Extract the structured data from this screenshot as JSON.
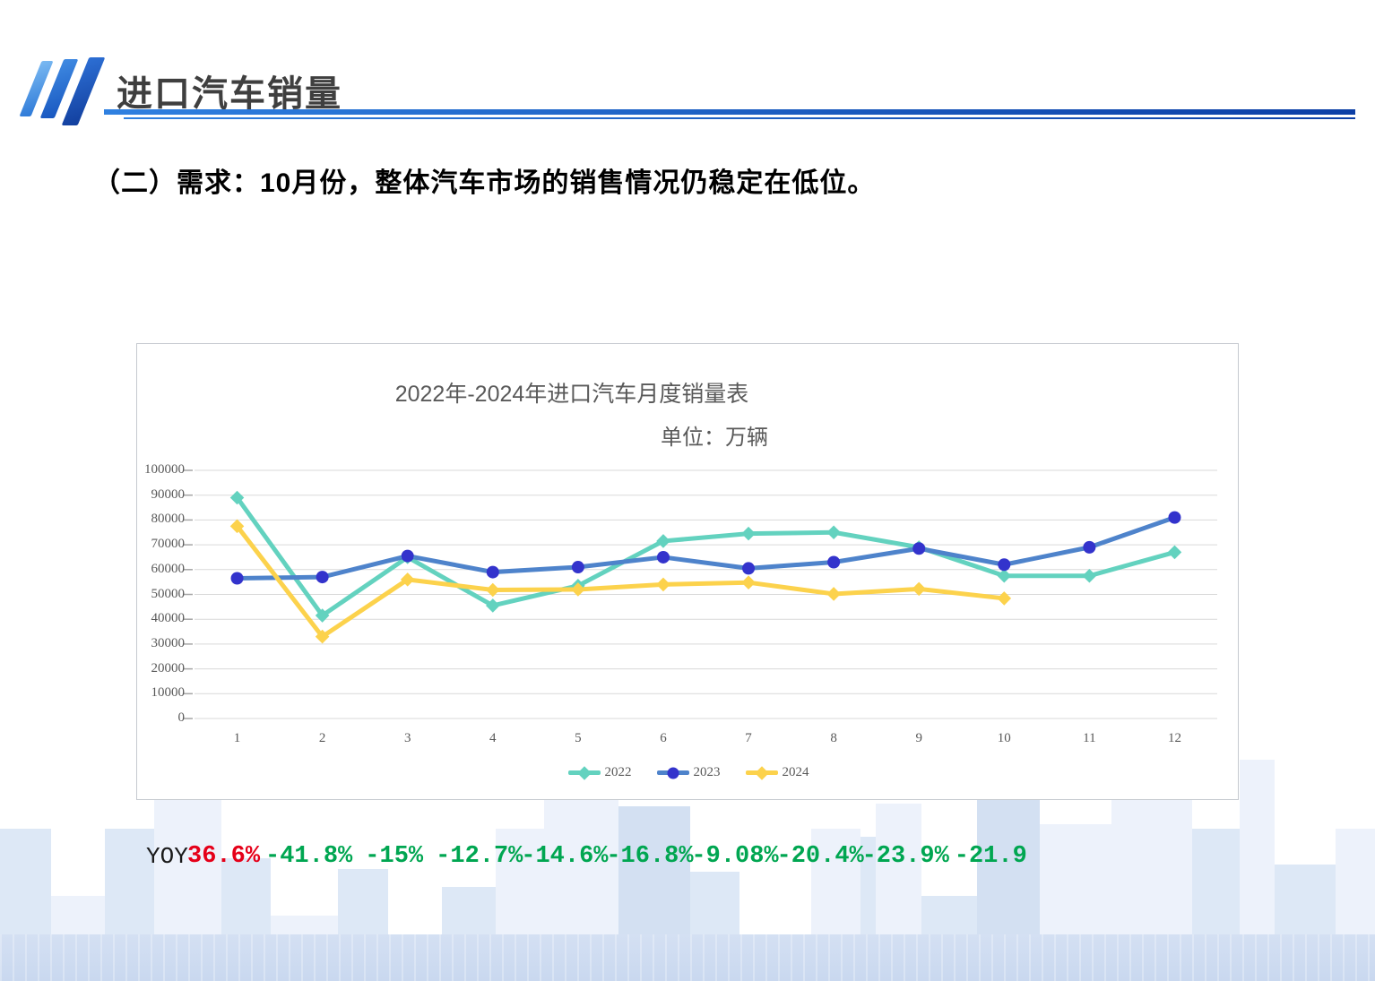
{
  "header": {
    "title": "进口汽车销量"
  },
  "section_heading": "（二）需求：10月份，整体汽车市场的销售情况仍稳定在低位。",
  "chart_data": {
    "type": "line",
    "title": "2022年-2024年进口汽车月度销量表",
    "subtitle": "单位：万辆",
    "x": [
      1,
      2,
      3,
      4,
      5,
      6,
      7,
      8,
      9,
      10,
      11,
      12
    ],
    "xlabel": "",
    "ylabel": "",
    "ylim": [
      0,
      100000
    ],
    "yticks": [
      0,
      10000,
      20000,
      30000,
      40000,
      50000,
      60000,
      70000,
      80000,
      90000,
      100000
    ],
    "grid": true,
    "legend_position": "bottom",
    "series": [
      {
        "name": "2022",
        "color": "#63d2bf",
        "marker": "diamond",
        "marker_color": "#63d2bf",
        "values": [
          89000,
          41500,
          65000,
          45500,
          53500,
          71500,
          74500,
          75000,
          69000,
          57500,
          57500,
          67000
        ]
      },
      {
        "name": "2023",
        "color": "#4e83cb",
        "marker": "circle",
        "marker_color": "#3333cc",
        "values": [
          56500,
          57000,
          65500,
          59000,
          61000,
          65000,
          60500,
          63000,
          68500,
          62000,
          69000,
          81000
        ]
      },
      {
        "name": "2024",
        "color": "#fcd24c",
        "marker": "diamond",
        "marker_color": "#fcd24c",
        "values": [
          77500,
          33000,
          56000,
          51800,
          52000,
          54000,
          54800,
          50200,
          52200,
          48400
        ]
      }
    ]
  },
  "yoy": {
    "label": "YOY",
    "positive_color": "#e50019",
    "negative_color": "#00a651",
    "values": [
      "36.6%",
      "-41.8%",
      "-15%",
      "-12.7%",
      "-14.6%",
      "-16.8%",
      "-9.08%",
      "-20.4%",
      "-23.9%",
      "-21.9"
    ]
  }
}
